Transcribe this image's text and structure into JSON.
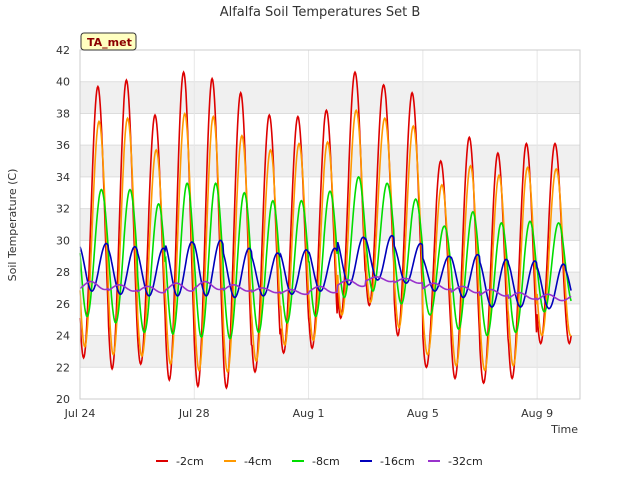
{
  "chart_data": {
    "type": "line",
    "title": "Alfalfa Soil Temperatures Set B",
    "xlabel": "Time",
    "ylabel": "Soil Temperature (C)",
    "badge": "TA_met",
    "ylim": [
      20,
      42
    ],
    "yticks": [
      "20",
      "22",
      "24",
      "26",
      "28",
      "30",
      "32",
      "34",
      "36",
      "38",
      "40",
      "42"
    ],
    "xlim_days": [
      0,
      17.5
    ],
    "xticks": [
      {
        "day": 0,
        "label": "Jul 24"
      },
      {
        "day": 4,
        "label": "Jul 28"
      },
      {
        "day": 8,
        "label": "Aug 1"
      },
      {
        "day": 12,
        "label": "Aug 5"
      },
      {
        "day": 16,
        "label": "Aug 9"
      }
    ],
    "grid": true,
    "banded_background": true,
    "legend_position": "bottom",
    "series_note": "daily max/min per series, days starting Jul 24",
    "series": [
      {
        "name": "-2cm",
        "color": "#dd0000",
        "peak_hour": 15,
        "daily_max": [
          39.7,
          40.1,
          37.9,
          40.6,
          40.2,
          39.3,
          37.9,
          37.8,
          38.2,
          40.6,
          39.8,
          39.3,
          35.0,
          36.5,
          35.5,
          36.1,
          36.1,
          36.1
        ],
        "daily_min": [
          22.6,
          21.9,
          22.2,
          21.2,
          20.8,
          20.7,
          21.7,
          22.9,
          23.2,
          25.1,
          25.9,
          24.0,
          22.0,
          21.3,
          21.0,
          21.3,
          23.5,
          23.5
        ]
      },
      {
        "name": "-4cm",
        "color": "#ff9900",
        "peak_hour": 16,
        "daily_max": [
          37.5,
          37.7,
          35.7,
          38.0,
          37.8,
          36.6,
          35.7,
          36.1,
          36.2,
          38.2,
          37.7,
          37.2,
          33.5,
          34.7,
          34.1,
          34.6,
          34.5,
          34.5
        ],
        "daily_min": [
          23.3,
          22.8,
          22.7,
          22.2,
          21.8,
          21.7,
          22.4,
          23.4,
          23.7,
          25.3,
          26.1,
          24.5,
          22.8,
          22.1,
          21.8,
          22.1,
          24.0,
          24.0
        ]
      },
      {
        "name": "-8cm",
        "color": "#00dd00",
        "peak_hour": 18,
        "daily_max": [
          33.2,
          33.2,
          32.3,
          33.6,
          33.6,
          33.0,
          32.5,
          32.5,
          33.1,
          34.0,
          33.6,
          32.6,
          30.9,
          31.8,
          31.1,
          31.2,
          31.1,
          30.8
        ],
        "daily_min": [
          25.2,
          24.8,
          24.2,
          24.1,
          23.9,
          23.8,
          24.2,
          24.8,
          25.2,
          26.4,
          26.8,
          26.0,
          25.3,
          24.4,
          24.0,
          24.2,
          25.5,
          26.0
        ]
      },
      {
        "name": "-16cm",
        "color": "#0000bb",
        "peak_hour": 22,
        "daily_max": [
          29.8,
          29.6,
          29.5,
          29.9,
          30.0,
          29.5,
          29.2,
          29.4,
          29.5,
          30.2,
          30.3,
          29.8,
          29.0,
          29.1,
          28.8,
          28.7,
          28.5,
          28.3
        ],
        "daily_min": [
          26.8,
          26.6,
          26.5,
          26.5,
          26.5,
          26.4,
          26.5,
          26.6,
          26.8,
          27.2,
          27.5,
          27.3,
          26.8,
          26.4,
          25.8,
          25.8,
          25.7,
          25.7
        ]
      },
      {
        "name": "-32cm",
        "color": "#9933cc",
        "peak_hour": 9,
        "daily_max": [
          27.4,
          27.2,
          27.1,
          27.3,
          27.4,
          27.2,
          27.0,
          26.9,
          27.1,
          27.5,
          27.7,
          27.6,
          27.3,
          27.1,
          26.9,
          26.7,
          26.6,
          26.6
        ],
        "daily_min": [
          26.9,
          26.8,
          26.7,
          26.8,
          26.9,
          26.8,
          26.7,
          26.6,
          26.7,
          27.1,
          27.4,
          27.3,
          26.9,
          26.7,
          26.5,
          26.3,
          26.2,
          26.2
        ]
      }
    ]
  }
}
